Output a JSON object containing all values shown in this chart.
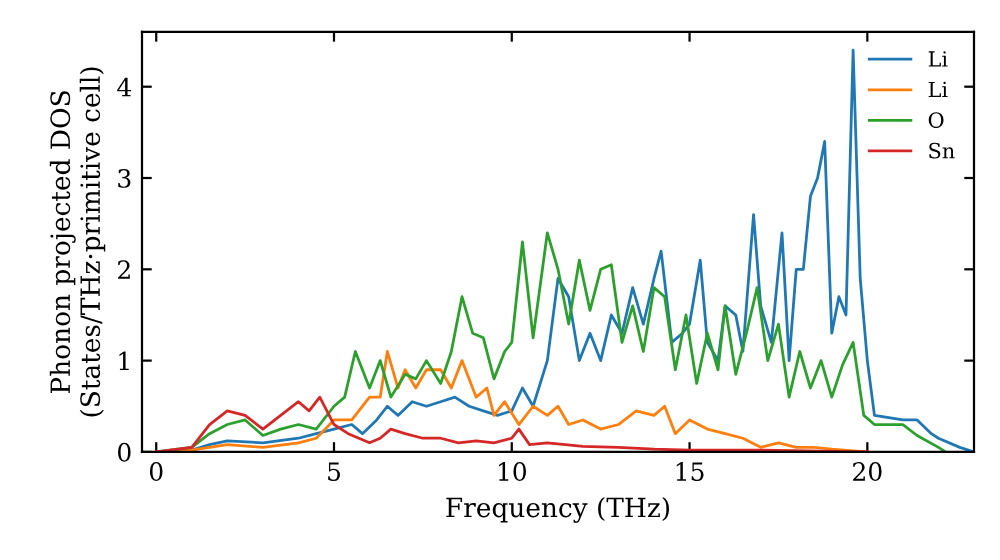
{
  "chart_data": {
    "type": "line",
    "xlabel": "Frequency (THz)",
    "ylabel": "Phonon projected DOS\n(States/THz·primitive cell)",
    "xlim": [
      -0.4,
      23
    ],
    "ylim": [
      0,
      4.6
    ],
    "xticks": [
      0,
      5,
      10,
      15,
      20
    ],
    "yticks": [
      0,
      1,
      2,
      3,
      4
    ],
    "grid": false,
    "legend": "top right",
    "marker": "none",
    "line_style": "solid",
    "series": [
      {
        "name": "Li",
        "color": "#1f77b4",
        "x": [
          0,
          1,
          1.5,
          2,
          3,
          4,
          4.5,
          5,
          5.5,
          5.8,
          6.2,
          6.5,
          6.8,
          7.2,
          7.6,
          8,
          8.4,
          8.8,
          9.2,
          9.6,
          10,
          10.3,
          10.6,
          11,
          11.3,
          11.6,
          11.9,
          12.2,
          12.5,
          12.8,
          13.1,
          13.4,
          13.7,
          14,
          14.2,
          14.5,
          14.8,
          15,
          15.3,
          15.5,
          15.8,
          16,
          16.3,
          16.5,
          16.8,
          17,
          17.3,
          17.6,
          17.8,
          18,
          18.2,
          18.4,
          18.6,
          18.8,
          19,
          19.2,
          19.4,
          19.6,
          19.8,
          20,
          20.2,
          21,
          21.4,
          21.8,
          22,
          22.6,
          23
        ],
        "values": [
          0,
          0.02,
          0.08,
          0.12,
          0.1,
          0.15,
          0.2,
          0.25,
          0.3,
          0.2,
          0.35,
          0.5,
          0.4,
          0.55,
          0.5,
          0.55,
          0.6,
          0.5,
          0.45,
          0.4,
          0.45,
          0.7,
          0.5,
          1.0,
          1.9,
          1.7,
          1.0,
          1.3,
          1.0,
          1.5,
          1.3,
          1.8,
          1.4,
          1.9,
          2.2,
          1.2,
          1.3,
          1.4,
          2.1,
          1.2,
          1.0,
          1.6,
          1.5,
          1.1,
          2.6,
          1.6,
          1.2,
          2.4,
          1.0,
          2.0,
          2.0,
          2.8,
          3.0,
          3.4,
          1.3,
          1.7,
          1.5,
          4.4,
          1.9,
          1.0,
          0.4,
          0.35,
          0.35,
          0.2,
          0.15,
          0.05,
          0
        ]
      },
      {
        "name": "Li",
        "color": "#ff7f0e",
        "x": [
          0,
          1,
          1.5,
          2,
          3,
          4,
          4.5,
          5,
          5.5,
          6,
          6.3,
          6.5,
          6.8,
          7,
          7.3,
          7.6,
          8,
          8.3,
          8.6,
          9,
          9.3,
          9.5,
          9.8,
          10.2,
          10.6,
          11,
          11.3,
          11.6,
          12,
          12.5,
          13,
          13.5,
          14,
          14.3,
          14.6,
          15,
          15.5,
          16,
          16.5,
          17,
          17.5,
          18,
          18.5,
          19,
          20
        ],
        "values": [
          0,
          0.02,
          0.05,
          0.08,
          0.05,
          0.1,
          0.15,
          0.35,
          0.35,
          0.6,
          0.6,
          1.1,
          0.7,
          0.9,
          0.7,
          0.9,
          0.9,
          0.7,
          1.0,
          0.6,
          0.7,
          0.4,
          0.55,
          0.3,
          0.5,
          0.4,
          0.5,
          0.3,
          0.35,
          0.25,
          0.3,
          0.45,
          0.4,
          0.5,
          0.2,
          0.35,
          0.25,
          0.2,
          0.15,
          0.05,
          0.1,
          0.05,
          0.05,
          0.03,
          0
        ]
      },
      {
        "name": "O",
        "color": "#2ca02c",
        "x": [
          0,
          1,
          1.5,
          2,
          2.5,
          3,
          3.5,
          4,
          4.5,
          5,
          5.3,
          5.6,
          6,
          6.3,
          6.6,
          7,
          7.3,
          7.6,
          8,
          8.3,
          8.6,
          8.9,
          9.2,
          9.5,
          9.8,
          10,
          10.3,
          10.6,
          11,
          11.3,
          11.6,
          11.9,
          12.2,
          12.5,
          12.8,
          13.1,
          13.4,
          13.7,
          14,
          14.3,
          14.6,
          14.9,
          15.2,
          15.5,
          15.8,
          16,
          16.3,
          16.6,
          16.9,
          17.2,
          17.5,
          17.8,
          18.1,
          18.4,
          18.7,
          19,
          19.3,
          19.6,
          19.9,
          20.2,
          21,
          21.4,
          22,
          22.2
        ],
        "values": [
          0,
          0.05,
          0.2,
          0.3,
          0.35,
          0.18,
          0.25,
          0.3,
          0.25,
          0.5,
          0.6,
          1.1,
          0.7,
          1.0,
          0.6,
          0.85,
          0.8,
          1.0,
          0.75,
          1.1,
          1.7,
          1.3,
          1.25,
          0.8,
          1.1,
          1.2,
          2.3,
          1.25,
          2.4,
          2.0,
          1.4,
          2.1,
          1.55,
          2.0,
          2.05,
          1.2,
          1.6,
          1.1,
          1.8,
          1.7,
          0.9,
          1.5,
          0.75,
          1.3,
          0.9,
          1.6,
          0.85,
          1.3,
          1.8,
          1.0,
          1.4,
          0.6,
          1.1,
          0.7,
          1.0,
          0.6,
          0.95,
          1.2,
          0.4,
          0.3,
          0.3,
          0.18,
          0.05,
          0
        ]
      },
      {
        "name": "Sn",
        "color": "#d62728",
        "x": [
          0,
          1,
          1.5,
          2,
          2.5,
          3,
          3.5,
          4,
          4.3,
          4.6,
          5,
          5.4,
          6,
          6.3,
          6.6,
          7,
          7.5,
          8,
          8.5,
          9,
          9.5,
          10,
          10.2,
          10.5,
          11,
          12,
          13,
          14,
          15,
          17,
          20
        ],
        "values": [
          0,
          0.05,
          0.3,
          0.45,
          0.4,
          0.25,
          0.4,
          0.55,
          0.45,
          0.6,
          0.3,
          0.2,
          0.1,
          0.15,
          0.25,
          0.2,
          0.15,
          0.15,
          0.1,
          0.12,
          0.1,
          0.15,
          0.25,
          0.08,
          0.1,
          0.06,
          0.05,
          0.03,
          0.02,
          0.02,
          0
        ]
      }
    ]
  }
}
